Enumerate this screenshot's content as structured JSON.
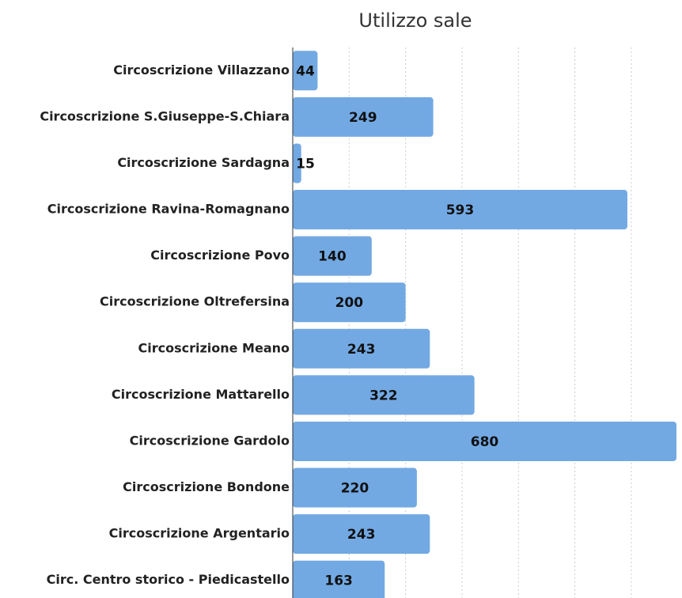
{
  "chart_data": {
    "type": "bar",
    "orientation": "horizontal",
    "title": "Utilizzo sale",
    "categories": [
      "Circoscrizione Villazzano",
      "Circoscrizione S.Giuseppe-S.Chiara",
      "Circoscrizione Sardagna",
      "Circoscrizione Ravina-Romagnano",
      "Circoscrizione Povo",
      "Circoscrizione Oltrefersina",
      "Circoscrizione Meano",
      "Circoscrizione Mattarello",
      "Circoscrizione Gardolo",
      "Circoscrizione Bondone",
      "Circoscrizione Argentario",
      "Circ. Centro storico - Piedicastello"
    ],
    "values": [
      44,
      249,
      15,
      593,
      140,
      200,
      243,
      322,
      680,
      220,
      243,
      163
    ],
    "color": "#72a9e3",
    "xlim": [
      0,
      680
    ],
    "xticks": [
      0,
      100,
      200,
      300,
      400,
      500,
      600
    ],
    "grid": true
  }
}
